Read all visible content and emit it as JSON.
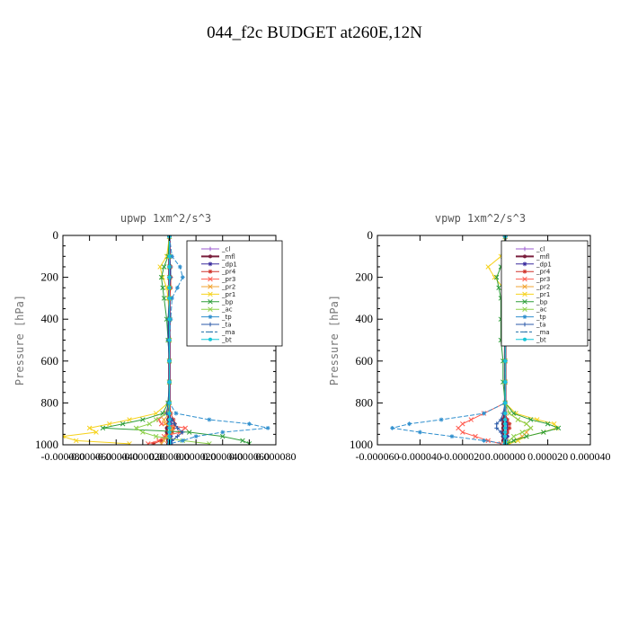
{
  "figure": {
    "title": "044_f2c  BUDGET at260E,12N"
  },
  "chart_data": [
    {
      "type": "line",
      "title": "upwp   1xm^2/s^3",
      "xlabel": "",
      "ylabel": "Pressure [hPa]",
      "ylim": [
        1000,
        0
      ],
      "xlim": [
        -8e-05,
        8e-05
      ],
      "yticks": [
        0,
        200,
        400,
        600,
        800,
        1000
      ],
      "xtick_labels": [
        "-0.000080",
        "-0.000060",
        "-0.000040",
        "-0.000020",
        "0.000000",
        "0.000020",
        "0.000040",
        "0.000060",
        "0.000080"
      ],
      "grid": false,
      "legend_position": "top-right",
      "y": [
        5,
        100,
        150,
        200,
        250,
        300,
        400,
        500,
        600,
        700,
        800,
        850,
        880,
        900,
        920,
        940,
        960,
        980,
        995
      ],
      "series": [
        {
          "name": "_cl",
          "color": "#9b59d0",
          "marker": "+",
          "values": [
            0,
            0,
            0,
            0,
            0,
            0,
            0,
            0,
            0,
            0,
            0,
            0,
            1e-06,
            1e-06,
            1e-06,
            1e-06,
            1e-06,
            1e-06,
            1e-06
          ]
        },
        {
          "name": "_mfl",
          "color": "#7a1f3d",
          "marker": "o",
          "values": [
            0,
            0,
            0,
            0,
            0,
            0,
            0,
            0,
            0,
            0,
            0,
            0,
            -1e-06,
            -1e-06,
            -2e-06,
            -2e-06,
            -2e-06,
            -1e-06,
            -1e-06
          ]
        },
        {
          "name": "_dp1",
          "color": "#3a2c9e",
          "marker": "*",
          "values": [
            0,
            0,
            0,
            0,
            0,
            0,
            0,
            0,
            0,
            0,
            0,
            0,
            1e-06,
            1e-06,
            1e-06,
            1e-06,
            1e-06,
            1e-06,
            1e-06
          ]
        },
        {
          "name": "_pr4",
          "color": "#d0342c",
          "marker": "*",
          "values": [
            0,
            0,
            1e-06,
            1e-06,
            1e-06,
            0,
            0,
            0,
            0,
            0,
            0,
            1e-06,
            3e-06,
            4e-06,
            3e-06,
            2e-06,
            -2e-06,
            -6e-06,
            -1.2e-05
          ]
        },
        {
          "name": "_pr3",
          "color": "#ff5a4e",
          "marker": "x",
          "values": [
            0,
            0,
            0,
            0,
            0,
            0,
            0,
            0,
            0,
            0,
            0,
            -3e-06,
            -8e-06,
            -6e-06,
            1.2e-05,
            8e-06,
            -4e-06,
            -8e-06,
            -1.6e-05
          ]
        },
        {
          "name": "_pr2",
          "color": "#f2a534",
          "marker": "x",
          "values": [
            0,
            0,
            0,
            0,
            0,
            0,
            0,
            0,
            0,
            0,
            0,
            0,
            -4e-06,
            -3e-06,
            2e-06,
            1e-06,
            -2e-06,
            -4e-06,
            -6e-06
          ]
        },
        {
          "name": "_pr1",
          "color": "#f6d21c",
          "marker": "x",
          "values": [
            0,
            -2e-06,
            -7e-06,
            -5e-06,
            -2e-06,
            -1e-06,
            0,
            0,
            0,
            0,
            -1e-06,
            -1e-05,
            -3e-05,
            -4.5e-05,
            -6e-05,
            -5.5e-05,
            -8e-05,
            -7e-05,
            -3e-05
          ]
        },
        {
          "name": "_bp",
          "color": "#2e9e3a",
          "marker": "x",
          "values": [
            0,
            -1e-06,
            -4e-06,
            -6e-06,
            -5e-06,
            -4e-06,
            -2e-06,
            -1e-06,
            0,
            0,
            -1e-06,
            -5e-06,
            -2e-05,
            -3.5e-05,
            -5e-05,
            1.5e-05,
            4e-05,
            5.5e-05,
            6e-05
          ]
        },
        {
          "name": "_ac",
          "color": "#8ed14a",
          "marker": "x",
          "values": [
            0,
            0,
            0,
            0,
            0,
            0,
            0,
            0,
            0,
            0,
            0,
            -2e-06,
            -1e-05,
            -1.5e-05,
            -2.5e-05,
            -2e-05,
            -1e-05,
            1e-05,
            3e-05
          ]
        },
        {
          "name": "_tp",
          "color": "#2f8fce",
          "marker": "*",
          "values": [
            0,
            2e-06,
            8e-06,
            1e-05,
            6e-06,
            2e-06,
            1e-06,
            0,
            0,
            0,
            0,
            5e-06,
            3e-05,
            6e-05,
            7.4e-05,
            4e-05,
            2e-05,
            1e-05,
            0
          ]
        },
        {
          "name": "_ta",
          "color": "#2b5aa8",
          "marker": "+",
          "values": [
            0,
            0,
            1e-06,
            1e-06,
            0,
            0,
            -1e-06,
            -1e-06,
            0,
            0,
            -1e-06,
            -2e-06,
            2e-06,
            4e-06,
            6e-06,
            1e-05,
            6e-06,
            2e-06,
            0
          ]
        },
        {
          "name": "_ma",
          "color": "#1f6ea8",
          "marker": "-",
          "values": [
            0,
            0,
            0,
            0,
            0,
            0,
            0,
            0,
            0,
            0,
            0,
            0,
            0,
            0,
            0,
            0,
            0,
            0,
            0
          ]
        },
        {
          "name": "_bt",
          "color": "#16c6d8",
          "marker": "o",
          "values": [
            0,
            0,
            0,
            0,
            0,
            0,
            0,
            0,
            0,
            0,
            0,
            0,
            0,
            0,
            0,
            0,
            0,
            0,
            0
          ]
        }
      ]
    },
    {
      "type": "line",
      "title": "vpwp   1xm^2/s^3",
      "xlabel": "",
      "ylabel": "Pressure [hPa]",
      "ylim": [
        1000,
        0
      ],
      "xlim": [
        -6e-05,
        4e-05
      ],
      "yticks": [
        0,
        200,
        400,
        600,
        800,
        1000
      ],
      "xtick_labels": [
        "-0.000060",
        "-0.000040",
        "-0.000020",
        "0.000000",
        "0.000020",
        "0.000040"
      ],
      "grid": false,
      "legend_position": "top-right",
      "y": [
        5,
        100,
        150,
        200,
        250,
        300,
        400,
        500,
        600,
        700,
        800,
        850,
        880,
        900,
        920,
        940,
        960,
        980,
        995
      ],
      "series": [
        {
          "name": "_cl",
          "color": "#9b59d0",
          "marker": "+",
          "values": [
            0,
            0,
            0,
            0,
            0,
            0,
            0,
            0,
            0,
            0,
            0,
            0,
            1e-06,
            1e-06,
            1e-06,
            1e-06,
            1e-06,
            1e-06,
            1e-06
          ]
        },
        {
          "name": "_mfl",
          "color": "#7a1f3d",
          "marker": "o",
          "values": [
            0,
            0,
            0,
            0,
            0,
            0,
            0,
            0,
            0,
            0,
            0,
            0,
            -1e-06,
            -1e-06,
            -1e-06,
            -1e-06,
            -1e-06,
            -1e-06,
            0
          ]
        },
        {
          "name": "_dp1",
          "color": "#3a2c9e",
          "marker": "*",
          "values": [
            0,
            0,
            0,
            0,
            0,
            0,
            0,
            0,
            0,
            0,
            0,
            0,
            0,
            1e-06,
            1e-06,
            1e-06,
            1e-06,
            0,
            0
          ]
        },
        {
          "name": "_pr4",
          "color": "#d0342c",
          "marker": "*",
          "values": [
            0,
            0,
            0,
            1e-06,
            1e-06,
            0,
            0,
            0,
            0,
            0,
            0,
            0,
            1e-06,
            2e-06,
            2e-06,
            1e-06,
            0,
            0,
            0
          ]
        },
        {
          "name": "_pr3",
          "color": "#ff5a4e",
          "marker": "x",
          "values": [
            0,
            0,
            0,
            0,
            0,
            0,
            0,
            0,
            0,
            0,
            0,
            -1e-05,
            -1.6e-05,
            -2e-05,
            -2.2e-05,
            -2e-05,
            -1.4e-05,
            -8e-06,
            -2e-06
          ]
        },
        {
          "name": "_pr2",
          "color": "#f2a534",
          "marker": "x",
          "values": [
            0,
            0,
            0,
            0,
            0,
            0,
            0,
            0,
            0,
            0,
            0,
            2e-06,
            6e-06,
            1e-05,
            1.2e-05,
            1e-05,
            8e-06,
            4e-06,
            1e-06
          ]
        },
        {
          "name": "_pr1",
          "color": "#f6d21c",
          "marker": "x",
          "values": [
            0,
            -2e-06,
            -8e-06,
            -5e-06,
            -1e-06,
            0,
            0,
            0,
            0,
            0,
            0,
            5e-06,
            1.5e-05,
            2.3e-05,
            2.4e-05,
            1.8e-05,
            1e-05,
            6e-06,
            2e-06
          ]
        },
        {
          "name": "_bp",
          "color": "#2e9e3a",
          "marker": "x",
          "values": [
            0,
            -1e-06,
            -2e-06,
            -4e-06,
            -3e-06,
            -2e-06,
            -2e-06,
            -2e-06,
            -1e-06,
            -1e-06,
            0,
            4e-06,
            1.2e-05,
            2e-05,
            2.5e-05,
            1.8e-05,
            1e-05,
            4e-06,
            1e-06
          ]
        },
        {
          "name": "_ac",
          "color": "#8ed14a",
          "marker": "x",
          "values": [
            0,
            0,
            0,
            0,
            0,
            0,
            0,
            0,
            0,
            0,
            0,
            2e-06,
            6e-06,
            1e-05,
            1.2e-05,
            8e-06,
            4e-06,
            2e-06,
            0
          ]
        },
        {
          "name": "_tp",
          "color": "#2f8fce",
          "marker": "*",
          "values": [
            0,
            1e-06,
            3e-06,
            2e-06,
            1e-06,
            0,
            0,
            0,
            0,
            0,
            0,
            -1e-05,
            -3e-05,
            -4.5e-05,
            -5.3e-05,
            -4e-05,
            -2.5e-05,
            -1e-05,
            0
          ]
        },
        {
          "name": "_ta",
          "color": "#2b5aa8",
          "marker": "+",
          "values": [
            0,
            0,
            0,
            0,
            0,
            0,
            0,
            0,
            0,
            0,
            0,
            -1e-06,
            -2e-06,
            -4e-06,
            -4e-06,
            -2e-06,
            -1e-06,
            0,
            0
          ]
        },
        {
          "name": "_ma",
          "color": "#1f6ea8",
          "marker": "-",
          "values": [
            0,
            0,
            0,
            0,
            0,
            0,
            0,
            0,
            0,
            0,
            0,
            0,
            0,
            0,
            0,
            0,
            0,
            0,
            0
          ]
        },
        {
          "name": "_bt",
          "color": "#16c6d8",
          "marker": "o",
          "values": [
            0,
            0,
            0,
            0,
            0,
            0,
            0,
            0,
            0,
            0,
            0,
            0,
            0,
            0,
            0,
            0,
            0,
            0,
            0
          ]
        }
      ]
    }
  ]
}
